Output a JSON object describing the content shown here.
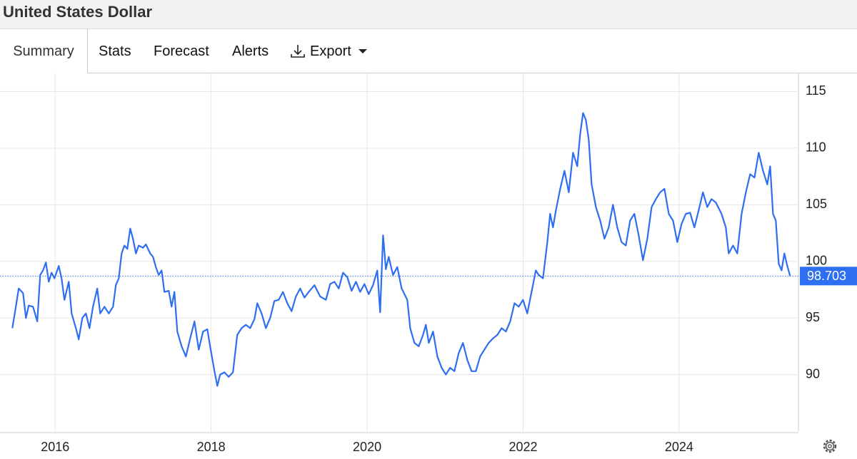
{
  "header": {
    "title": "United States Dollar"
  },
  "tabs": [
    "Summary",
    "Stats",
    "Forecast",
    "Alerts",
    "Export"
  ],
  "chart_data": {
    "type": "line",
    "color": "#2e6ef0",
    "x": [
      2015.451,
      2015.496,
      2015.533,
      2015.588,
      2015.625,
      2015.661,
      2015.716,
      2015.771,
      2015.808,
      2015.844,
      2015.881,
      2015.918,
      2015.954,
      2015.991,
      2016.046,
      2016.082,
      2016.119,
      2016.174,
      2016.211,
      2016.266,
      2016.302,
      2016.348,
      2016.394,
      2016.44,
      2016.485,
      2016.54,
      2016.577,
      2016.632,
      2016.687,
      2016.742,
      2016.778,
      2016.815,
      2016.852,
      2016.888,
      2016.925,
      2016.962,
      2016.998,
      2017.035,
      2017.071,
      2017.126,
      2017.163,
      2017.218,
      2017.255,
      2017.291,
      2017.328,
      2017.365,
      2017.401,
      2017.456,
      2017.493,
      2017.529,
      2017.566,
      2017.621,
      2017.676,
      2017.731,
      2017.786,
      2017.841,
      2017.896,
      2017.951,
      2017.987,
      2018.042,
      2018.079,
      2018.115,
      2018.17,
      2018.225,
      2018.28,
      2018.335,
      2018.39,
      2018.445,
      2018.5,
      2018.555,
      2018.592,
      2018.647,
      2018.702,
      2018.757,
      2018.811,
      2018.866,
      2018.921,
      2018.976,
      2019.031,
      2019.086,
      2019.141,
      2019.196,
      2019.251,
      2019.324,
      2019.398,
      2019.471,
      2019.526,
      2019.581,
      2019.636,
      2019.691,
      2019.746,
      2019.801,
      2019.856,
      2019.91,
      2019.965,
      2020.02,
      2020.075,
      2020.13,
      2020.167,
      2020.204,
      2020.24,
      2020.277,
      2020.332,
      2020.387,
      2020.442,
      2020.515,
      2020.552,
      2020.606,
      2020.661,
      2020.716,
      2020.753,
      2020.79,
      2020.845,
      2020.9,
      2020.955,
      2021.009,
      2021.064,
      2021.119,
      2021.174,
      2021.229,
      2021.284,
      2021.339,
      2021.394,
      2021.449,
      2021.504,
      2021.559,
      2021.614,
      2021.669,
      2021.724,
      2021.779,
      2021.834,
      2021.889,
      2021.944,
      2021.998,
      2022.053,
      2022.108,
      2022.163,
      2022.2,
      2022.255,
      2022.31,
      2022.346,
      2022.383,
      2022.42,
      2022.475,
      2022.53,
      2022.585,
      2022.64,
      2022.694,
      2022.731,
      2022.768,
      2022.804,
      2022.841,
      2022.878,
      2022.933,
      2022.988,
      2023.043,
      2023.097,
      2023.152,
      2023.207,
      2023.262,
      2023.317,
      2023.372,
      2023.427,
      2023.482,
      2023.537,
      2023.592,
      2023.647,
      2023.702,
      2023.757,
      2023.812,
      2023.867,
      2023.922,
      2023.977,
      2024.031,
      2024.086,
      2024.141,
      2024.196,
      2024.251,
      2024.306,
      2024.361,
      2024.416,
      2024.471,
      2024.544,
      2024.599,
      2024.636,
      2024.691,
      2024.746,
      2024.801,
      2024.856,
      2024.911,
      2024.966,
      2025.021,
      2025.076,
      2025.131,
      2025.167,
      2025.204,
      2025.24,
      2025.277,
      2025.314,
      2025.35,
      2025.387,
      2025.423
    ],
    "values": [
      94.1,
      96.0,
      97.6,
      97.2,
      95.0,
      96.1,
      96.0,
      94.7,
      98.8,
      99.2,
      99.9,
      98.2,
      99.0,
      98.5,
      99.6,
      98.5,
      96.6,
      98.2,
      95.4,
      94.1,
      93.1,
      95.0,
      95.4,
      94.1,
      96.0,
      97.6,
      95.4,
      96.0,
      95.4,
      96.0,
      97.9,
      98.5,
      100.7,
      101.4,
      101.1,
      102.9,
      102.0,
      100.7,
      101.4,
      101.2,
      101.5,
      100.7,
      100.4,
      99.5,
      98.8,
      99.2,
      97.3,
      97.4,
      96.0,
      97.3,
      93.8,
      92.5,
      91.6,
      93.2,
      94.7,
      92.2,
      93.8,
      94.0,
      92.5,
      90.3,
      89.0,
      90.0,
      90.2,
      89.8,
      90.2,
      93.5,
      94.1,
      94.4,
      94.1,
      94.9,
      96.3,
      95.4,
      94.1,
      95.0,
      96.5,
      96.6,
      97.3,
      96.3,
      95.6,
      96.9,
      97.6,
      96.8,
      97.3,
      97.9,
      96.9,
      96.6,
      98.0,
      98.2,
      97.6,
      99.0,
      98.6,
      97.4,
      98.2,
      97.3,
      98.0,
      97.1,
      97.9,
      99.2,
      95.5,
      102.3,
      99.3,
      100.4,
      98.8,
      99.5,
      97.6,
      96.6,
      94.1,
      92.8,
      92.5,
      93.5,
      94.4,
      92.8,
      93.8,
      91.6,
      90.6,
      90.0,
      90.6,
      90.3,
      91.9,
      92.8,
      91.3,
      90.3,
      90.3,
      91.6,
      92.2,
      92.8,
      93.2,
      93.5,
      94.1,
      93.8,
      94.7,
      96.3,
      96.0,
      96.6,
      95.4,
      97.3,
      99.2,
      98.8,
      98.5,
      101.7,
      104.2,
      103.0,
      104.5,
      106.4,
      108.0,
      106.1,
      109.6,
      108.4,
      111.2,
      113.1,
      112.5,
      110.8,
      106.8,
      104.8,
      103.6,
      102.0,
      103.0,
      105.0,
      103.0,
      101.7,
      101.4,
      103.6,
      104.2,
      102.3,
      100.1,
      102.0,
      104.8,
      105.5,
      106.1,
      106.4,
      104.2,
      103.6,
      101.7,
      103.3,
      104.2,
      104.3,
      103.0,
      104.5,
      106.1,
      104.8,
      105.5,
      105.2,
      104.2,
      103.0,
      100.7,
      101.4,
      100.7,
      104.2,
      106.1,
      107.7,
      107.4,
      109.6,
      108.0,
      106.8,
      108.4,
      104.2,
      103.6,
      99.8,
      99.2,
      100.7,
      99.6,
      98.703
    ],
    "last_value": 98.703,
    "xlim": [
      2015.43,
      2025.53
    ],
    "xticks": [
      2016,
      2018,
      2020,
      2022,
      2024
    ],
    "ylim": [
      85,
      116.6
    ],
    "yticks": [
      90,
      95,
      100,
      105,
      110,
      115
    ],
    "grid": true
  }
}
